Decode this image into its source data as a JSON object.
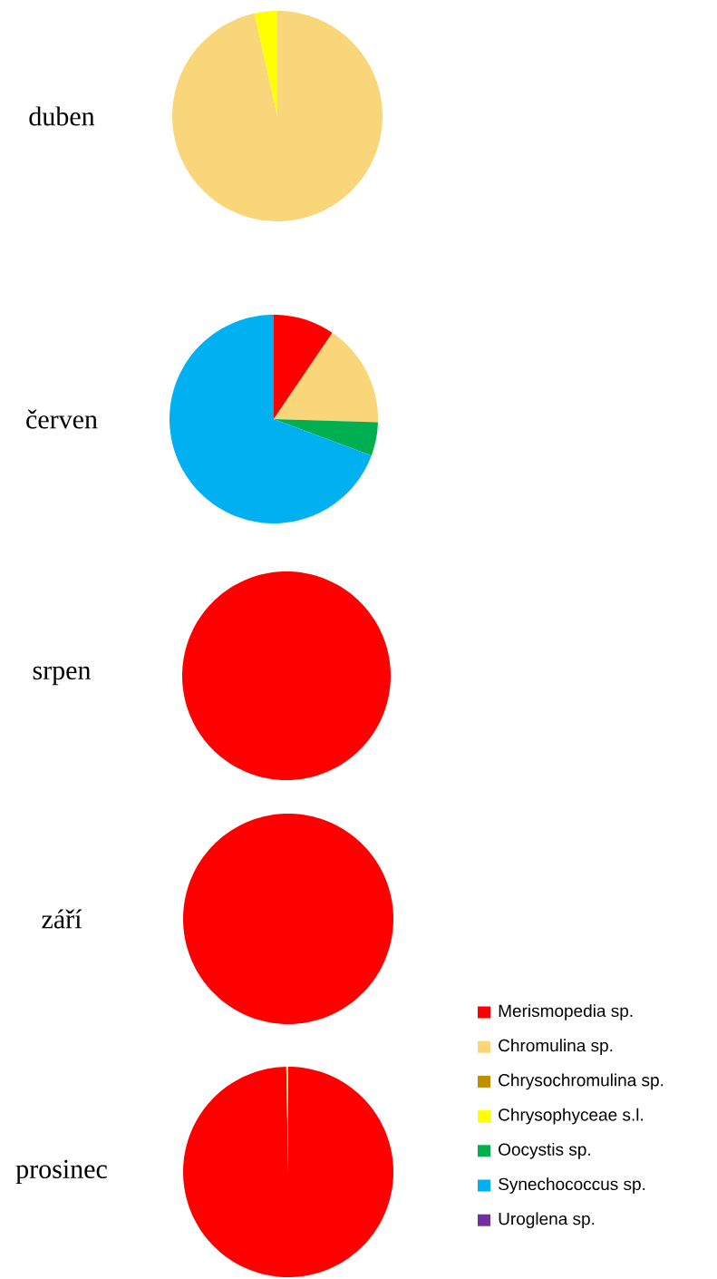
{
  "chart_data": [
    {
      "type": "pie",
      "title": "duben",
      "categories": [
        null,
        null,
        null,
        null,
        null,
        null,
        null
      ],
      "values": [
        0,
        96.5,
        0,
        3.5,
        0,
        0,
        0
      ],
      "colors": [
        "#ff0000",
        "#fad67a",
        "#bf8f00",
        "#ffff00",
        "#00b050",
        "#00b0f0",
        "#7030a0"
      ]
    },
    {
      "type": "pie",
      "title": "červen",
      "categories": [
        null,
        null,
        null,
        null,
        null,
        null,
        null
      ],
      "values": [
        9.5,
        16,
        0,
        0,
        5.2,
        69.3,
        0
      ],
      "colors": [
        "#ff0000",
        "#fad67a",
        "#bf8f00",
        "#ffff00",
        "#00b050",
        "#00b0f0",
        "#7030a0"
      ]
    },
    {
      "type": "pie",
      "title": "srpen",
      "categories": [
        null,
        null,
        null,
        null,
        null,
        null,
        null
      ],
      "values": [
        100,
        0,
        0,
        0,
        0,
        0,
        0
      ],
      "colors": [
        "#ff0000",
        "#fad67a",
        "#bf8f00",
        "#ffff00",
        "#00b050",
        "#00b0f0",
        "#7030a0"
      ]
    },
    {
      "type": "pie",
      "title": "září",
      "categories": [
        null,
        null,
        null,
        null,
        null,
        null,
        null
      ],
      "values": [
        100,
        0,
        0,
        0,
        0,
        0,
        0
      ],
      "colors": [
        "#ff0000",
        "#fad67a",
        "#bf8f00",
        "#ffff00",
        "#00b050",
        "#00b0f0",
        "#7030a0"
      ]
    },
    {
      "type": "pie",
      "title": "prosinec",
      "categories": [
        "Merismopedia sp.",
        "Chromulina sp.",
        "Chrysochromulina sp.",
        "Chrysophyceae s.l.",
        "Oocystis sp.",
        "Synechococcus sp.",
        "Uroglena sp."
      ],
      "values": [
        99.7,
        0.3,
        0,
        0,
        0,
        0,
        0
      ],
      "colors": [
        "#ff0000",
        "#fad67a",
        "#bf8f00",
        "#ffff00",
        "#00b050",
        "#00b0f0",
        "#7030a0"
      ],
      "legend": "right"
    }
  ]
}
